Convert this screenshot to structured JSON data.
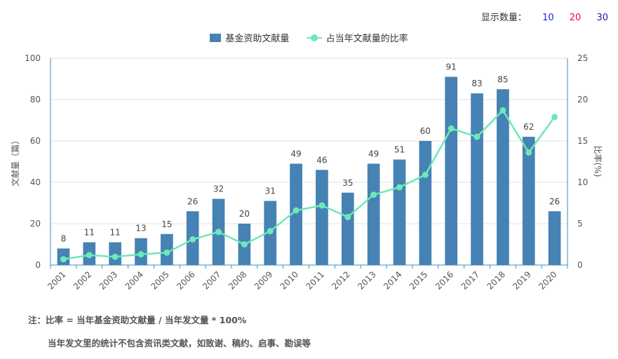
{
  "topbar": {
    "label": "显示数量：",
    "options": [
      "10",
      "20",
      "30"
    ]
  },
  "colors": {
    "bar": "#4682b4",
    "line": "#6ee8b8",
    "axis": "#3a8fbf",
    "grid": "#e2e2e2"
  },
  "notes": {
    "line1": "注：比率 = 当年基金资助文献量 / 当年发文量 * 100%",
    "line2": "当年发文里的统计不包含资讯类文献，如致谢、稿约、启事、勘误等"
  },
  "chart_data": {
    "type": "bar",
    "categories": [
      "2001",
      "2002",
      "2003",
      "2004",
      "2005",
      "2006",
      "2007",
      "2008",
      "2009",
      "2010",
      "2011",
      "2012",
      "2013",
      "2014",
      "2015",
      "2016",
      "2017",
      "2018",
      "2019",
      "2020"
    ],
    "series": [
      {
        "name": "基金资助文献量",
        "type": "bar",
        "axis": "left",
        "values": [
          8,
          11,
          11,
          13,
          15,
          26,
          32,
          20,
          31,
          49,
          46,
          35,
          49,
          51,
          60,
          91,
          83,
          85,
          62,
          26
        ]
      },
      {
        "name": "占当年文献量的比率",
        "type": "line",
        "axis": "right",
        "values": [
          0.7,
          1.2,
          1.0,
          1.3,
          1.5,
          3.1,
          4.0,
          2.5,
          4.1,
          6.6,
          7.2,
          5.8,
          8.5,
          9.4,
          10.9,
          16.5,
          15.5,
          18.7,
          13.6,
          17.9
        ]
      }
    ],
    "ylabel": "文献量（篇）",
    "y2label": "比率(%)",
    "ylim": [
      0,
      100
    ],
    "y2lim": [
      0,
      25
    ],
    "yticks": [
      0,
      20,
      40,
      60,
      80,
      100
    ],
    "y2ticks": [
      0,
      5,
      10,
      15,
      20,
      25
    ],
    "grid": true,
    "legend": "top-center"
  }
}
